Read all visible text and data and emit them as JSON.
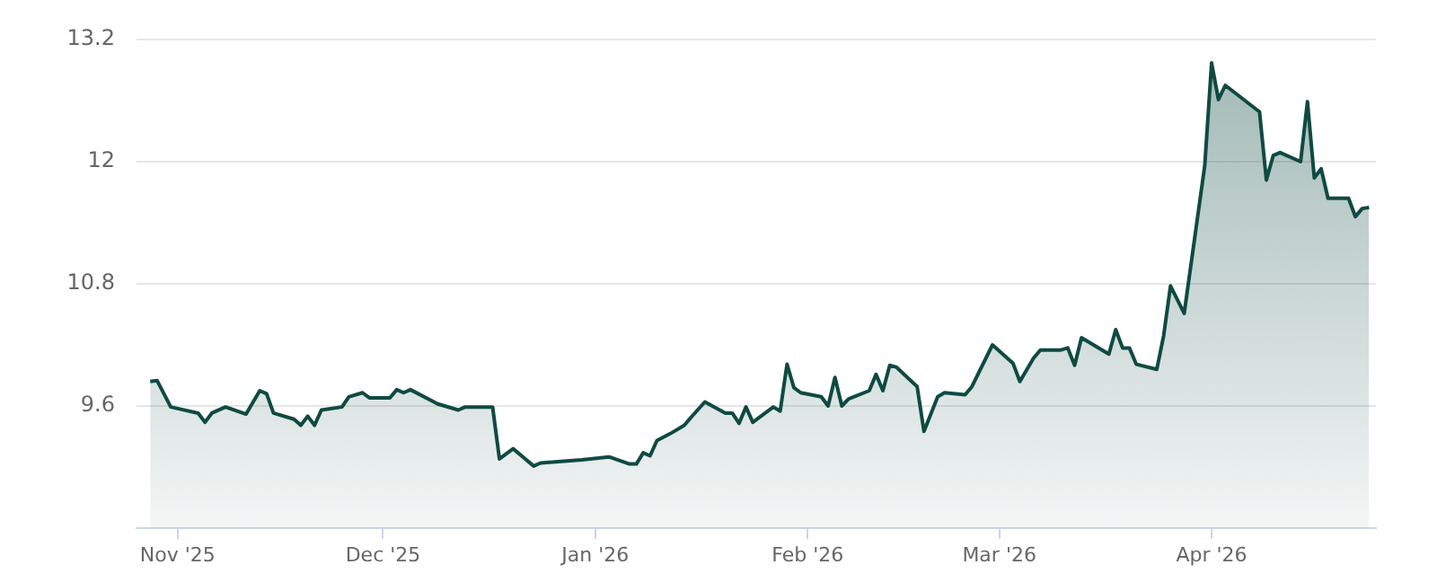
{
  "chart_data": {
    "type": "area",
    "color": "#0f4a42",
    "marker": "none",
    "grid": "y",
    "ylim": [
      8.4,
      13.2
    ],
    "yticks": [
      9.6,
      10.8,
      12,
      13.2
    ],
    "xlim": [
      "2025-10-26",
      "2026-04-25"
    ],
    "xticks": [
      {
        "value": "2025-11-01",
        "label": "Nov '25"
      },
      {
        "value": "2025-12-01",
        "label": "Dec '25"
      },
      {
        "value": "2026-01-01",
        "label": "Jan '26"
      },
      {
        "value": "2026-02-01",
        "label": "Feb '26"
      },
      {
        "value": "2026-03-01",
        "label": "Mar '26"
      },
      {
        "value": "2026-04-01",
        "label": "Apr '26"
      }
    ],
    "x": [
      "2025-10-28",
      "2025-10-29",
      "2025-10-31",
      "2025-11-04",
      "2025-11-05",
      "2025-11-06",
      "2025-11-08",
      "2025-11-11",
      "2025-11-13",
      "2025-11-14",
      "2025-11-15",
      "2025-11-18",
      "2025-11-19",
      "2025-11-20",
      "2025-11-21",
      "2025-11-22",
      "2025-11-25",
      "2025-11-26",
      "2025-11-28",
      "2025-11-29",
      "2025-12-02",
      "2025-12-03",
      "2025-12-04",
      "2025-12-05",
      "2025-12-09",
      "2025-12-12",
      "2025-12-13",
      "2025-12-17",
      "2025-12-18",
      "2025-12-20",
      "2025-12-23",
      "2025-12-24",
      "2025-12-30",
      "2026-01-03",
      "2026-01-06",
      "2026-01-07",
      "2026-01-08",
      "2026-01-09",
      "2026-01-10",
      "2026-01-12",
      "2026-01-14",
      "2026-01-15",
      "2026-01-17",
      "2026-01-20",
      "2026-01-21",
      "2026-01-22",
      "2026-01-23",
      "2026-01-24",
      "2026-01-27",
      "2026-01-28",
      "2026-01-29",
      "2026-01-30",
      "2026-01-31",
      "2026-02-03",
      "2026-02-04",
      "2026-02-05",
      "2026-02-06",
      "2026-02-07",
      "2026-02-10",
      "2026-02-11",
      "2026-02-12",
      "2026-02-13",
      "2026-02-14",
      "2026-02-17",
      "2026-02-18",
      "2026-02-20",
      "2026-02-21",
      "2026-02-24",
      "2026-02-25",
      "2026-02-28",
      "2026-03-03",
      "2026-03-04",
      "2026-03-06",
      "2026-03-07",
      "2026-03-10",
      "2026-03-11",
      "2026-03-12",
      "2026-03-13",
      "2026-03-17",
      "2026-03-18",
      "2026-03-19",
      "2026-03-20",
      "2026-03-21",
      "2026-03-24",
      "2026-03-25",
      "2026-03-26",
      "2026-03-28",
      "2026-03-31",
      "2026-04-01",
      "2026-04-02",
      "2026-04-03",
      "2026-04-08",
      "2026-04-09",
      "2026-04-10",
      "2026-04-11",
      "2026-04-14",
      "2026-04-15",
      "2026-04-16",
      "2026-04-17",
      "2026-04-18",
      "2026-04-21",
      "2026-04-22",
      "2026-04-23",
      "2026-04-24"
    ],
    "values": [
      9.84,
      9.85,
      9.59,
      9.53,
      9.44,
      9.53,
      9.59,
      9.52,
      9.75,
      9.72,
      9.53,
      9.47,
      9.41,
      9.5,
      9.41,
      9.56,
      9.59,
      9.69,
      9.73,
      9.68,
      9.68,
      9.76,
      9.73,
      9.76,
      9.62,
      9.56,
      9.59,
      9.59,
      9.08,
      9.18,
      9.01,
      9.04,
      9.07,
      9.1,
      9.03,
      9.03,
      9.14,
      9.11,
      9.26,
      9.33,
      9.41,
      9.49,
      9.64,
      9.53,
      9.53,
      9.43,
      9.59,
      9.44,
      9.59,
      9.55,
      10.01,
      9.78,
      9.73,
      9.69,
      9.6,
      9.88,
      9.6,
      9.67,
      9.75,
      9.91,
      9.75,
      10.0,
      9.98,
      9.79,
      9.35,
      9.69,
      9.73,
      9.71,
      9.79,
      10.2,
      10.02,
      9.84,
      10.07,
      10.15,
      10.15,
      10.17,
      10.0,
      10.27,
      10.11,
      10.35,
      10.17,
      10.17,
      10.01,
      9.96,
      10.29,
      10.78,
      10.51,
      11.96,
      12.97,
      12.61,
      12.75,
      12.49,
      11.82,
      12.06,
      12.09,
      12.0,
      12.59,
      11.84,
      11.93,
      11.64,
      11.64,
      11.46,
      11.54,
      11.55
    ]
  }
}
